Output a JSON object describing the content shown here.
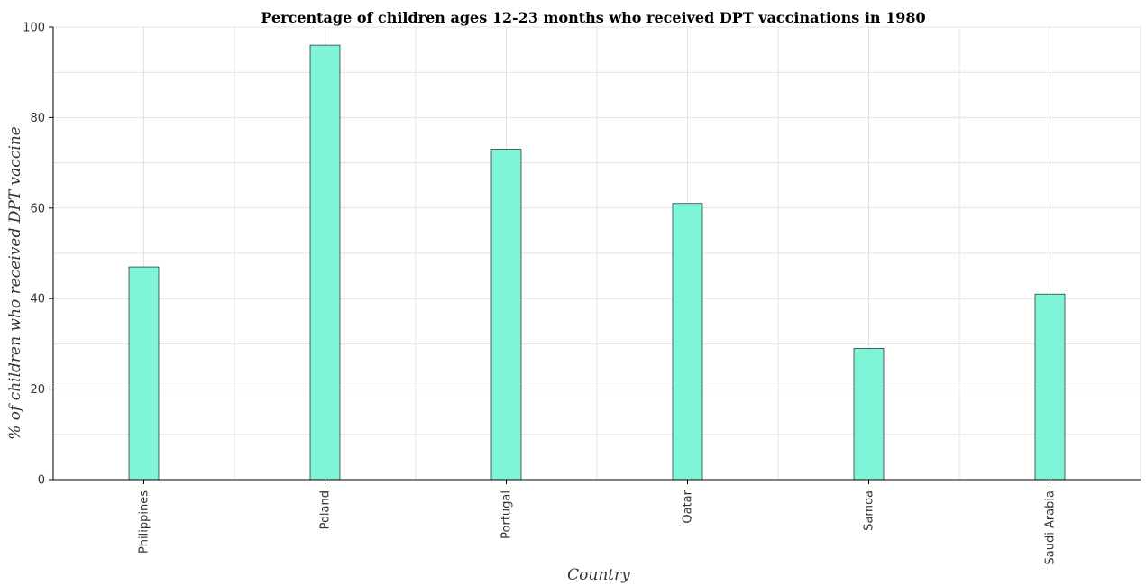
{
  "chart_data": {
    "type": "bar",
    "title": "Percentage of children ages 12-23 months who received DPT vaccinations in 1980",
    "xlabel": "Country",
    "ylabel": "% of children who received DPT vaccine",
    "categories": [
      "Philippines",
      "Poland",
      "Portugal",
      "Qatar",
      "Samoa",
      "Saudi Arabia"
    ],
    "values": [
      47,
      96,
      73,
      61,
      29,
      41
    ],
    "ylim": [
      0,
      100
    ],
    "yticks": [
      0,
      20,
      40,
      60,
      80,
      100
    ],
    "grid": true,
    "bar_color": "#7ff5d8"
  }
}
